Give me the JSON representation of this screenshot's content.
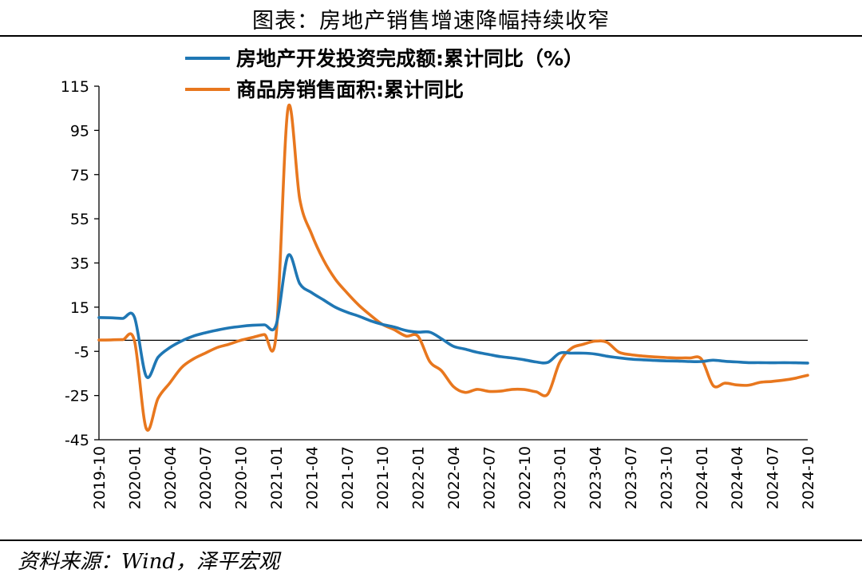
{
  "title": "图表：房地产销售增速降幅持续收窄",
  "source": "资料来源：Wind，泽平宏观",
  "colors": {
    "series_1": "#1f77b4",
    "series_2": "#e8771e",
    "axis": "#000000"
  },
  "chart_data": {
    "type": "line",
    "title": "图表：房地产销售增速降幅持续收窄",
    "xlabel": "",
    "ylabel": "",
    "ylim": [
      -45,
      115
    ],
    "yticks": [
      115,
      95,
      75,
      55,
      35,
      15,
      -5,
      -25,
      -45
    ],
    "grid": false,
    "legend": "top-center",
    "baseline": 0,
    "x_tick_labels": [
      "2019-10",
      "2020-01",
      "2020-04",
      "2020-07",
      "2020-10",
      "2021-01",
      "2021-04",
      "2021-07",
      "2021-10",
      "2022-01",
      "2022-04",
      "2022-07",
      "2022-10",
      "2023-01",
      "2023-04",
      "2023-07",
      "2023-10",
      "2024-01",
      "2024-04",
      "2024-07",
      "2024-10"
    ],
    "x": [
      "2019-10",
      "2019-11",
      "2019-12",
      "2020-01",
      "2020-02",
      "2020-03",
      "2020-04",
      "2020-05",
      "2020-06",
      "2020-07",
      "2020-08",
      "2020-09",
      "2020-10",
      "2020-11",
      "2020-12",
      "2021-01",
      "2021-02",
      "2021-03",
      "2021-04",
      "2021-05",
      "2021-06",
      "2021-07",
      "2021-08",
      "2021-09",
      "2021-10",
      "2021-11",
      "2021-12",
      "2022-01",
      "2022-02",
      "2022-03",
      "2022-04",
      "2022-05",
      "2022-06",
      "2022-07",
      "2022-08",
      "2022-09",
      "2022-10",
      "2022-11",
      "2022-12",
      "2023-01",
      "2023-02",
      "2023-03",
      "2023-04",
      "2023-05",
      "2023-06",
      "2023-07",
      "2023-08",
      "2023-09",
      "2023-10",
      "2023-11",
      "2023-12",
      "2024-01",
      "2024-02",
      "2024-03",
      "2024-04",
      "2024-05",
      "2024-06",
      "2024-07",
      "2024-08",
      "2024-09",
      "2024-10"
    ],
    "series": [
      {
        "name": "房地产开发投资完成额:累计同比（%）",
        "color": "#1f77b4",
        "values": [
          10.3,
          10.2,
          9.9,
          10.5,
          -16.3,
          -7.7,
          -3.3,
          -0.3,
          1.9,
          3.4,
          4.6,
          5.6,
          6.3,
          6.8,
          7.0,
          7.0,
          38.3,
          25.6,
          21.6,
          18.3,
          15.0,
          12.7,
          10.9,
          8.8,
          7.2,
          6.0,
          4.4,
          3.7,
          3.7,
          0.7,
          -2.7,
          -4.0,
          -5.4,
          -6.4,
          -7.4,
          -8.0,
          -8.8,
          -9.8,
          -10.0,
          -5.8,
          -5.8,
          -5.8,
          -6.2,
          -7.2,
          -7.9,
          -8.5,
          -8.8,
          -9.1,
          -9.3,
          -9.4,
          -9.6,
          -9.6,
          -9.0,
          -9.5,
          -9.8,
          -10.1,
          -10.1,
          -10.2,
          -10.1,
          -10.2,
          -10.3
        ]
      },
      {
        "name": "商品房销售面积:累计同比",
        "color": "#e8771e",
        "values": [
          0.1,
          0.2,
          0.3,
          -0.1,
          -39.9,
          -26.3,
          -19.3,
          -12.3,
          -8.4,
          -5.8,
          -3.3,
          -1.8,
          0.0,
          1.3,
          2.6,
          2.6,
          104.9,
          63.8,
          48.1,
          36.4,
          27.7,
          21.5,
          15.9,
          11.3,
          7.2,
          4.8,
          1.9,
          1.9,
          -9.6,
          -13.8,
          -20.9,
          -23.6,
          -22.2,
          -23.1,
          -23.0,
          -22.2,
          -22.3,
          -23.3,
          -24.3,
          -10.0,
          -3.6,
          -1.8,
          -0.4,
          -0.9,
          -5.3,
          -6.5,
          -7.1,
          -7.5,
          -7.8,
          -8.0,
          -8.0,
          -8.5,
          -20.5,
          -19.4,
          -20.2,
          -20.3,
          -19.0,
          -18.6,
          -18.0,
          -17.1,
          -15.8
        ]
      }
    ]
  }
}
